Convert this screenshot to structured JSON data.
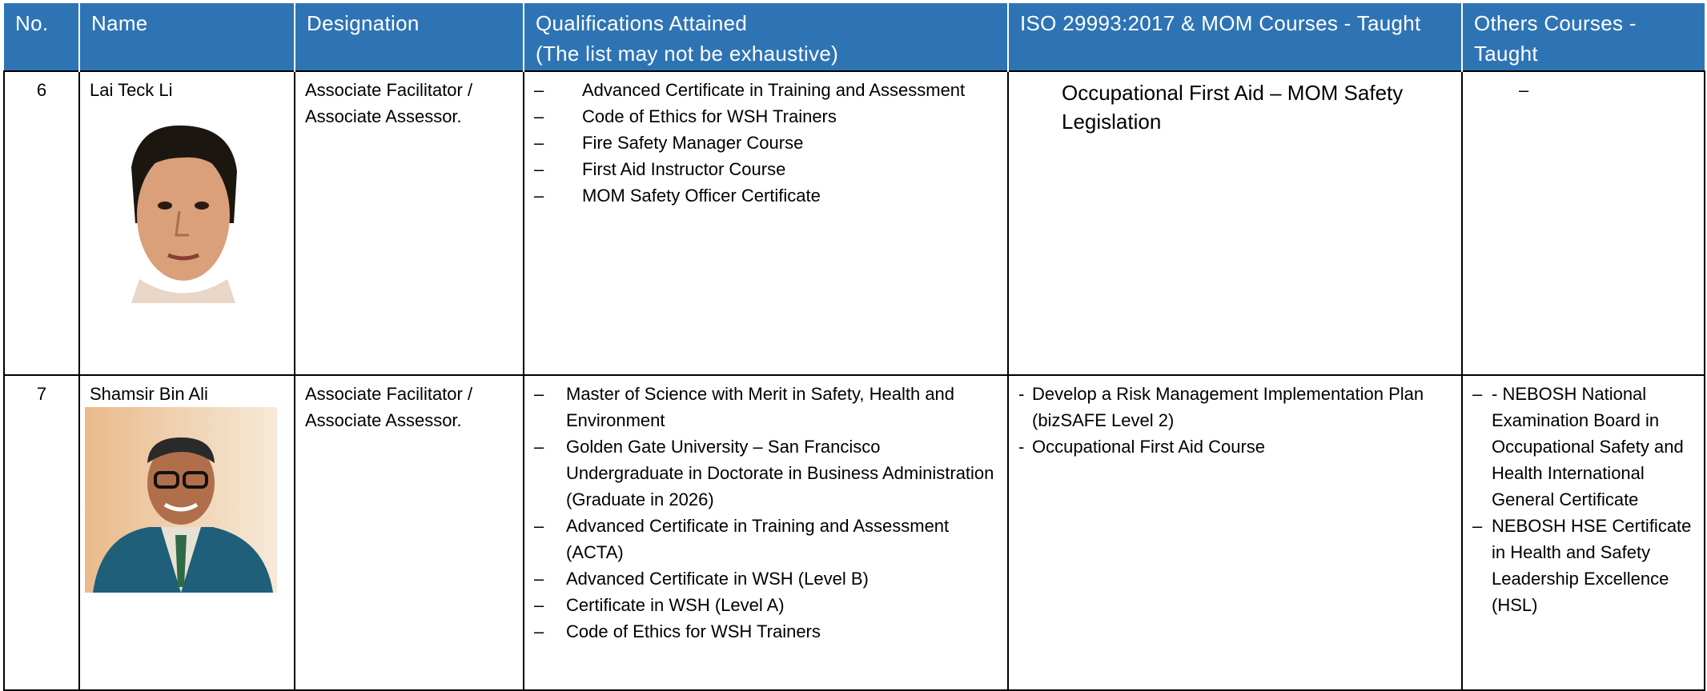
{
  "table": {
    "headers": [
      [
        "No."
      ],
      [
        "Name"
      ],
      [
        "Designation"
      ],
      [
        "Qualifications Attained",
        "(The list may not be exhaustive)"
      ],
      [
        "ISO 29993:2017 & MOM Courses - Taught"
      ],
      [
        "Others Courses - Taught"
      ]
    ],
    "rows": [
      {
        "no": "6",
        "name": "Lai Teck Li",
        "designation": "Associate Facilitator / Associate Assessor.",
        "qualifications": {
          "bullet": "–",
          "items": [
            "Advanced Certificate in Training and Assessment",
            "Code of Ethics for WSH Trainers",
            "Fire Safety Manager Course",
            "First Aid Instructor Course",
            "MOM Safety Officer Certificate"
          ]
        },
        "iso": {
          "text": "Occupational First Aid – MOM Safety Legislation"
        },
        "others": {
          "text": "–"
        }
      },
      {
        "no": "7",
        "name": "Shamsir Bin Ali",
        "designation": "Associate Facilitator / Associate Assessor.",
        "qualifications": {
          "bullet": "–",
          "items": [
            "Master of Science with Merit in Safety, Health and Environment",
            "Golden Gate University – San Francisco Undergraduate in Doctorate in Business Administration (Graduate in 2026)",
            "Advanced Certificate in Training and Assessment (ACTA)",
            "Advanced Certificate in WSH (Level B)",
            "Certificate in WSH (Level A)",
            "Code of Ethics for WSH Trainers"
          ]
        },
        "iso": {
          "bullet": "-",
          "items": [
            "Develop a Risk Management Implementation Plan (bizSAFE Level 2)",
            "Occupational First Aid Course"
          ]
        },
        "others": {
          "bullet": "–",
          "items": [
            "- NEBOSH National Examination Board in Occupational Safety and Health International General Certificate",
            "NEBOSH HSE Certificate in Health and Safety Leadership Excellence (HSL)"
          ]
        }
      }
    ]
  }
}
